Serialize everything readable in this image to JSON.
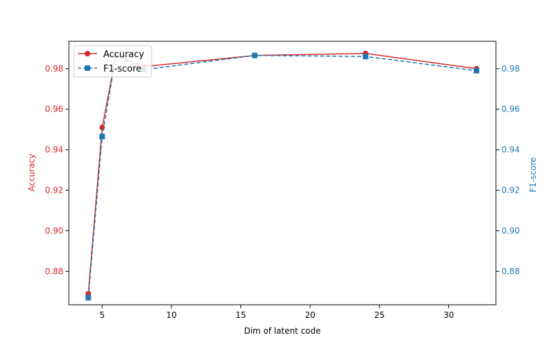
{
  "chart_data": {
    "type": "line",
    "xlabel": "Dim of latent code",
    "ylabel_left": "Accuracy",
    "ylabel_right": "F1-score",
    "xlim": [
      2.6,
      33.4
    ],
    "ylim_left": [
      0.8635,
      0.9935
    ],
    "ylim_right": [
      0.8635,
      0.9935
    ],
    "x_ticks": [
      5,
      10,
      15,
      20,
      25,
      30
    ],
    "y_ticks_left": [
      0.88,
      0.9,
      0.92,
      0.94,
      0.96,
      0.98
    ],
    "y_ticks_right": [
      0.88,
      0.9,
      0.92,
      0.94,
      0.96,
      0.98
    ],
    "x_tick_labels": [
      "5",
      "10",
      "15",
      "20",
      "25",
      "30"
    ],
    "y_tick_labels_left": [
      "0.88",
      "0.90",
      "0.92",
      "0.94",
      "0.96",
      "0.98"
    ],
    "y_tick_labels_right": [
      "0.88",
      "0.90",
      "0.92",
      "0.94",
      "0.96",
      "0.98"
    ],
    "legend_position": "upper-left",
    "grid": false,
    "series": [
      {
        "name": "Accuracy",
        "axis": "left",
        "color": "#d62728",
        "line_style": "solid",
        "marker": "circle",
        "x": [
          4,
          5,
          6,
          8,
          16,
          24,
          32
        ],
        "values": [
          0.869,
          0.951,
          0.9865,
          0.981,
          0.9865,
          0.9875,
          0.98
        ]
      },
      {
        "name": "F1-score",
        "axis": "right",
        "color": "#1f77b4",
        "line_style": "dashed",
        "marker": "square",
        "x": [
          4,
          5,
          6,
          8,
          16,
          24,
          32
        ],
        "values": [
          0.867,
          0.9465,
          0.9865,
          0.9795,
          0.9865,
          0.986,
          0.979
        ]
      }
    ]
  }
}
